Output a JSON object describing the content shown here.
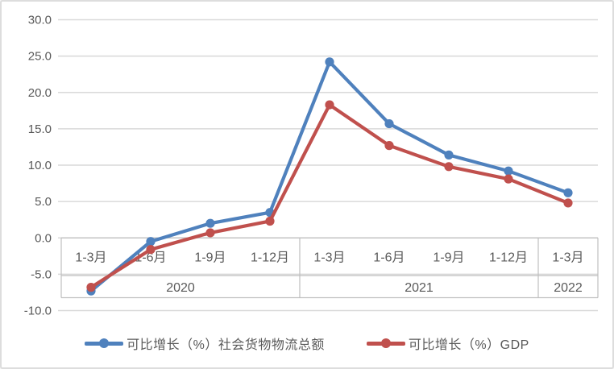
{
  "colors": {
    "background": "#ffffff",
    "frame_border": "#dddddd",
    "gridline": "#d9d9d9",
    "axis_text": "#595959",
    "table_border": "#bfbfbf",
    "series_logistics": "#4f81bd",
    "series_gdp": "#c0504d"
  },
  "chart_data": {
    "type": "line",
    "title": "",
    "xlabel": "",
    "ylabel": "",
    "grid": true,
    "legend_position": "bottom",
    "ylim": [
      -10,
      30
    ],
    "ytick_step": 5,
    "yticks": [
      "30.0",
      "25.0",
      "20.0",
      "15.0",
      "10.0",
      "5.0",
      "0.0",
      "-5.0",
      "-10.0"
    ],
    "x_categories_level1": [
      "1-3月",
      "1-6月",
      "1-9月",
      "1-12月",
      "1-3月",
      "1-6月",
      "1-9月",
      "1-12月",
      "1-3月"
    ],
    "x_categories_level2": [
      {
        "label": "2020",
        "span": 4
      },
      {
        "label": "2021",
        "span": 4
      },
      {
        "label": "2022",
        "span": 1
      }
    ],
    "series": [
      {
        "name": "可比增长（%）社会货物物流总额",
        "color": "#4f81bd",
        "values": [
          -7.3,
          -0.5,
          2.0,
          3.5,
          24.2,
          15.7,
          11.4,
          9.2,
          6.2
        ]
      },
      {
        "name": "可比增长（%）GDP",
        "color": "#c0504d",
        "values": [
          -6.8,
          -1.6,
          0.7,
          2.3,
          18.3,
          12.7,
          9.8,
          8.1,
          4.8
        ]
      }
    ]
  }
}
